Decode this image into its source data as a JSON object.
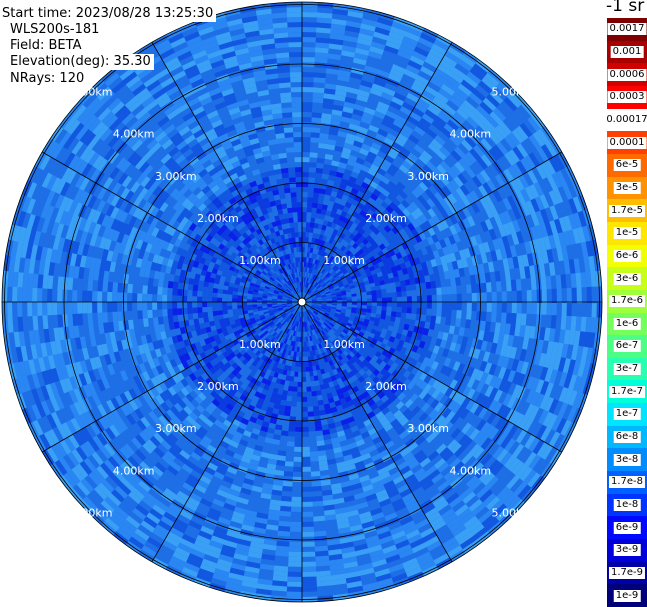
{
  "info": {
    "start_time": "Start time: 2023/08/28 13:25:30",
    "instrument": "WLS200s-181",
    "field": "Field: BETA",
    "elevation": "Elevation(deg): 35.30",
    "nrays": "NRays: 120"
  },
  "colorbar": {
    "unit": "-1 sr",
    "segments": [
      {
        "label": "0.0017",
        "color": "#7f0000"
      },
      {
        "label": "0.001",
        "color": "#a80000"
      },
      {
        "label": "0.0006",
        "color": "#d00000"
      },
      {
        "label": "0.0003",
        "color": "#ff0000"
      },
      {
        "label": "0.00017",
        "color": "#ffffff"
      },
      {
        "label": "0.0001",
        "color": "#ff4000"
      },
      {
        "label": "6e-5",
        "color": "#ff6a00"
      },
      {
        "label": "3e-5",
        "color": "#ff9200"
      },
      {
        "label": "1.7e-5",
        "color": "#ffbd00"
      },
      {
        "label": "1e-5",
        "color": "#ffe600"
      },
      {
        "label": "6e-6",
        "color": "#f2ff00"
      },
      {
        "label": "3e-6",
        "color": "#c8ff1a"
      },
      {
        "label": "1.7e-6",
        "color": "#9eff3b"
      },
      {
        "label": "1e-6",
        "color": "#75ff5c"
      },
      {
        "label": "6e-7",
        "color": "#4cff84"
      },
      {
        "label": "3e-7",
        "color": "#28ffb0"
      },
      {
        "label": "1.7e-7",
        "color": "#00ffd8"
      },
      {
        "label": "1e-7",
        "color": "#00e4ff"
      },
      {
        "label": "6e-8",
        "color": "#00b8ff"
      },
      {
        "label": "3e-8",
        "color": "#008cff"
      },
      {
        "label": "1.7e-8",
        "color": "#0060ff"
      },
      {
        "label": "1e-8",
        "color": "#0034ff"
      },
      {
        "label": "6e-9",
        "color": "#0008ff"
      },
      {
        "label": "3e-9",
        "color": "#0000d8"
      },
      {
        "label": "1.7e-9",
        "color": "#0000a8"
      },
      {
        "label": "1e-9",
        "color": "#00007a"
      }
    ]
  },
  "range_rings": [
    {
      "km": 1,
      "label": "1.00km"
    },
    {
      "km": 2,
      "label": "2.00km"
    },
    {
      "km": 3,
      "label": "3.00km"
    },
    {
      "km": 4,
      "label": "4.00km"
    },
    {
      "km": 5,
      "label": "5.00km"
    }
  ],
  "palette": {
    "dominant": [
      "#1e6fe6",
      "#2a86f2",
      "#1257e0",
      "#3aa0f5",
      "#0b3be0",
      "#0a20e8"
    ],
    "grid": "#000000",
    "label_text": "#ffffff"
  }
}
